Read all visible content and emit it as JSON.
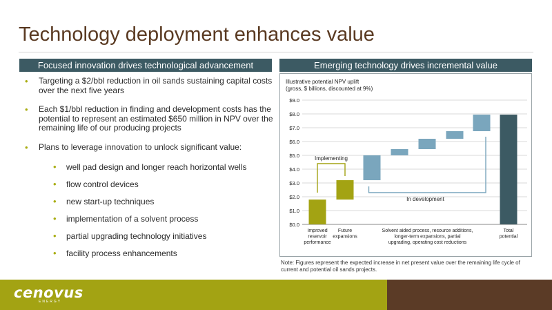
{
  "slide": {
    "title": "Technology deployment enhances value"
  },
  "left": {
    "header": "Focused innovation drives technological advancement",
    "bullets": [
      "Targeting a $2/bbl reduction in oil sands sustaining capital costs over the next five years",
      "Each $1/bbl reduction in finding and development costs has the potential to represent an estimated $650 million in NPV over the remaining life of our producing projects",
      "Plans to leverage innovation to unlock significant value:"
    ],
    "sub_bullets": [
      "well pad design and longer reach horizontal wells",
      "flow control devices",
      "new start-up techniques",
      "implementation of a solvent process",
      "partial upgrading technology initiatives",
      "facility process enhancements"
    ]
  },
  "right": {
    "header": "Emerging technology drives incremental value",
    "note": "Note: Figures represent the expected increase in net present value over the remaining life cycle of current and potential oil sands projects."
  },
  "chart_data": {
    "type": "bar",
    "subtype": "waterfall",
    "title": "Illustrative potential NPV uplift",
    "subtitle": "(gross, $ billions, discounted at 9%)",
    "ylim": [
      0,
      9
    ],
    "yticks": [
      "$0.0",
      "$1.0",
      "$2.0",
      "$3.0",
      "$4.0",
      "$5.0",
      "$6.0",
      "$7.0",
      "$8.0",
      "$9.0"
    ],
    "grid": true,
    "steps": [
      {
        "base": 0.0,
        "top": 1.8,
        "color": "#a3a313"
      },
      {
        "base": 1.8,
        "top": 3.2,
        "color": "#a3a313"
      },
      {
        "base": 3.2,
        "top": 5.0,
        "color": "#7aa6bd"
      },
      {
        "base": 5.0,
        "top": 5.45,
        "color": "#7aa6bd"
      },
      {
        "base": 5.45,
        "top": 6.2,
        "color": "#7aa6bd"
      },
      {
        "base": 6.2,
        "top": 6.75,
        "color": "#7aa6bd"
      },
      {
        "base": 6.75,
        "top": 7.95,
        "color": "#7aa6bd"
      },
      {
        "base": 0.0,
        "top": 7.95,
        "color": "#3c5a63"
      }
    ],
    "category_labels": [
      [
        "Improved",
        "reservoir",
        "performance"
      ],
      [
        "Future",
        "expansions"
      ],
      [
        "Solvent aided process, resource additions,",
        "longer-term expansions, partial",
        "upgrading, operating cost reductions"
      ],
      [
        "Total",
        "potential"
      ]
    ],
    "annotations": {
      "implementing": "Implementing",
      "in_development": "In development"
    }
  },
  "footer": {
    "logo": "cenovus",
    "logo_sub": "ENERGY",
    "colors": {
      "left": "#a3a313",
      "right": "#5b3b26"
    }
  }
}
